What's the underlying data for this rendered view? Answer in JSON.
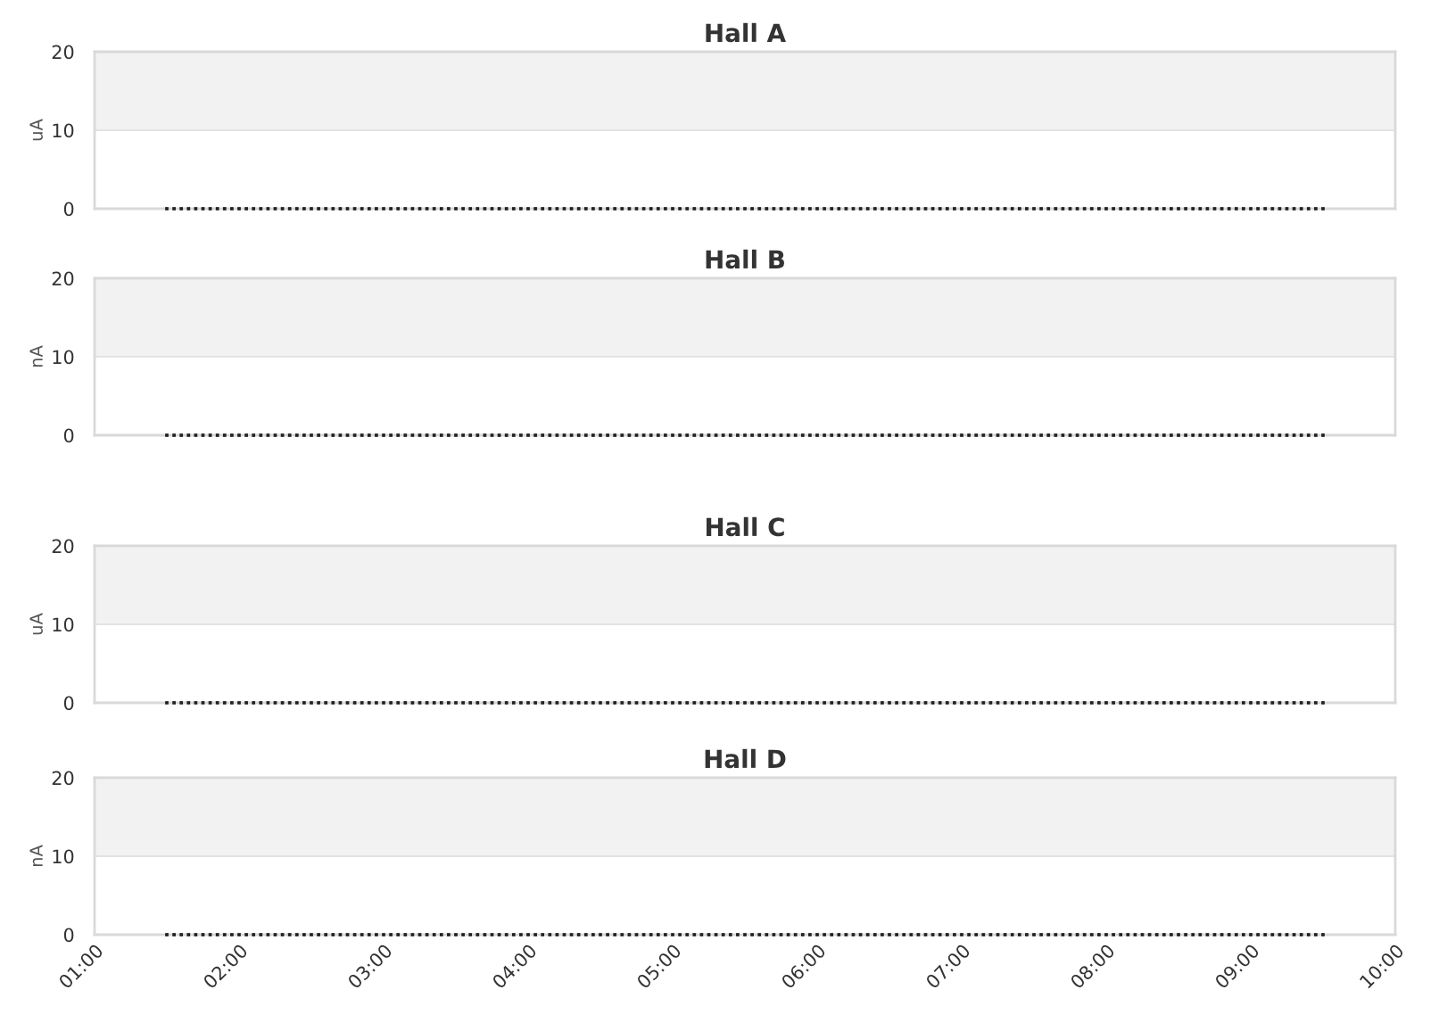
{
  "chart_data": [
    {
      "type": "scatter",
      "title": "Hall A",
      "ylabel": "uA",
      "color": "#222222",
      "marker": "square",
      "x": [
        1.5,
        1.55,
        1.6,
        1.65,
        1.7,
        1.75,
        1.8,
        1.85,
        1.9,
        1.95,
        2,
        2.05,
        2.1,
        2.15,
        2.2,
        2.25,
        2.3,
        2.35,
        2.4,
        2.45,
        2.5,
        2.55,
        2.6,
        2.65,
        2.7,
        2.75,
        2.8,
        2.85,
        2.9,
        2.95,
        3,
        3.05,
        3.1,
        3.15,
        3.2,
        3.25,
        3.3,
        3.35,
        3.4,
        3.45,
        3.5,
        3.55,
        3.6,
        3.65,
        3.7,
        3.75,
        3.8,
        3.85,
        3.9,
        3.95,
        4,
        4.05,
        4.1,
        4.15,
        4.2,
        4.25,
        4.3,
        4.35,
        4.4,
        4.45,
        4.5,
        4.55,
        4.6,
        4.65,
        4.7,
        4.75,
        4.8,
        4.85,
        4.9,
        4.95,
        5,
        5.05,
        5.1,
        5.15,
        5.2,
        5.25,
        5.3,
        5.35,
        5.4,
        5.45,
        5.5,
        5.55,
        5.6,
        5.65,
        5.7,
        5.75,
        5.8,
        5.85,
        5.9,
        5.95,
        6,
        6.05,
        6.1,
        6.15,
        6.2,
        6.25,
        6.3,
        6.35,
        6.4,
        6.45,
        6.5,
        6.55,
        6.6,
        6.65,
        6.7,
        6.75,
        6.8,
        6.85,
        6.9,
        6.95,
        7,
        7.05,
        7.1,
        7.15,
        7.2,
        7.25,
        7.3,
        7.35,
        7.4,
        7.45,
        7.5,
        7.55,
        7.6,
        7.65,
        7.7,
        7.75,
        7.8,
        7.85,
        7.9,
        7.95,
        8,
        8.05,
        8.1,
        8.15,
        8.2,
        8.25,
        8.3,
        8.35,
        8.4,
        8.45,
        8.5,
        8.55,
        8.6,
        8.65,
        8.7,
        8.75,
        8.8,
        8.85,
        8.9,
        8.95,
        9,
        9.05,
        9.1,
        9.15,
        9.2,
        9.25,
        9.3,
        9.35,
        9.4,
        9.45,
        9.5
      ],
      "values": [
        0,
        0,
        0,
        0,
        0,
        0,
        0,
        0,
        0,
        0,
        0,
        0,
        0,
        0,
        0,
        0,
        0,
        0,
        0,
        0,
        0,
        0,
        0,
        0,
        0,
        0,
        0,
        0,
        0,
        0,
        0,
        0,
        0,
        0,
        0,
        0,
        0,
        0,
        0,
        0,
        0,
        0,
        0,
        0,
        0,
        0,
        0,
        0,
        0,
        0,
        0,
        0,
        0,
        0,
        0,
        0,
        0,
        0,
        0,
        0,
        0,
        0,
        0,
        0,
        0,
        0,
        0,
        0,
        0,
        0,
        0,
        0,
        0,
        0,
        0,
        0,
        0,
        0,
        0,
        0,
        0,
        0,
        0,
        0,
        0,
        0,
        0,
        0,
        0,
        0,
        0,
        0,
        0,
        0,
        0,
        0,
        0,
        0,
        0,
        0,
        0,
        0,
        0,
        0,
        0,
        0,
        0,
        0,
        0,
        0,
        0,
        0,
        0,
        0,
        0,
        0,
        0,
        0,
        0,
        0,
        0,
        0,
        0,
        0,
        0,
        0,
        0,
        0,
        0,
        0,
        0,
        0,
        0,
        0,
        0,
        0,
        0,
        0,
        0,
        0,
        0,
        0,
        0,
        0,
        0,
        0,
        0,
        0,
        0,
        0,
        0,
        0,
        0,
        0,
        0,
        0,
        0,
        0,
        0,
        0,
        0
      ],
      "xlim": [
        1,
        10
      ],
      "ylim": [
        0,
        20
      ],
      "yticks": [
        0,
        10,
        20
      ],
      "grid": "y",
      "bands": [
        {
          "axis": "y",
          "from": 10,
          "to": 20,
          "color": "#f2f2f2"
        }
      ],
      "tick_labels": "y"
    },
    {
      "type": "scatter",
      "title": "Hall B",
      "ylabel": "nA",
      "color": "#222222",
      "marker": "square",
      "x": [
        1.5,
        1.55,
        1.6,
        1.65,
        1.7,
        1.75,
        1.8,
        1.85,
        1.9,
        1.95,
        2,
        2.05,
        2.1,
        2.15,
        2.2,
        2.25,
        2.3,
        2.35,
        2.4,
        2.45,
        2.5,
        2.55,
        2.6,
        2.65,
        2.7,
        2.75,
        2.8,
        2.85,
        2.9,
        2.95,
        3,
        3.05,
        3.1,
        3.15,
        3.2,
        3.25,
        3.3,
        3.35,
        3.4,
        3.45,
        3.5,
        3.55,
        3.6,
        3.65,
        3.7,
        3.75,
        3.8,
        3.85,
        3.9,
        3.95,
        4,
        4.05,
        4.1,
        4.15,
        4.2,
        4.25,
        4.3,
        4.35,
        4.4,
        4.45,
        4.5,
        4.55,
        4.6,
        4.65,
        4.7,
        4.75,
        4.8,
        4.85,
        4.9,
        4.95,
        5,
        5.05,
        5.1,
        5.15,
        5.2,
        5.25,
        5.3,
        5.35,
        5.4,
        5.45,
        5.5,
        5.55,
        5.6,
        5.65,
        5.7,
        5.75,
        5.8,
        5.85,
        5.9,
        5.95,
        6,
        6.05,
        6.1,
        6.15,
        6.2,
        6.25,
        6.3,
        6.35,
        6.4,
        6.45,
        6.5,
        6.55,
        6.6,
        6.65,
        6.7,
        6.75,
        6.8,
        6.85,
        6.9,
        6.95,
        7,
        7.05,
        7.1,
        7.15,
        7.2,
        7.25,
        7.3,
        7.35,
        7.4,
        7.45,
        7.5,
        7.55,
        7.6,
        7.65,
        7.7,
        7.75,
        7.8,
        7.85,
        7.9,
        7.95,
        8,
        8.05,
        8.1,
        8.15,
        8.2,
        8.25,
        8.3,
        8.35,
        8.4,
        8.45,
        8.5,
        8.55,
        8.6,
        8.65,
        8.7,
        8.75,
        8.8,
        8.85,
        8.9,
        8.95,
        9,
        9.05,
        9.1,
        9.15,
        9.2,
        9.25,
        9.3,
        9.35,
        9.4,
        9.45,
        9.5
      ],
      "values": [
        0,
        0,
        0,
        0,
        0,
        0,
        0,
        0,
        0,
        0,
        0,
        0,
        0,
        0,
        0,
        0,
        0,
        0,
        0,
        0,
        0,
        0,
        0,
        0,
        0,
        0,
        0,
        0,
        0,
        0,
        0,
        0,
        0,
        0,
        0,
        0,
        0,
        0,
        0,
        0,
        0,
        0,
        0,
        0,
        0,
        0,
        0,
        0,
        0,
        0,
        0,
        0,
        0,
        0,
        0,
        0,
        0,
        0,
        0,
        0,
        0,
        0,
        0,
        0,
        0,
        0,
        0,
        0,
        0,
        0,
        0,
        0,
        0,
        0,
        0,
        0,
        0,
        0,
        0,
        0,
        0,
        0,
        0,
        0,
        0,
        0,
        0,
        0,
        0,
        0,
        0,
        0,
        0,
        0,
        0,
        0,
        0,
        0,
        0,
        0,
        0,
        0,
        0,
        0,
        0,
        0,
        0,
        0,
        0,
        0,
        0,
        0,
        0,
        0,
        0,
        0,
        0,
        0,
        0,
        0,
        0,
        0,
        0,
        0,
        0,
        0,
        0,
        0,
        0,
        0,
        0,
        0,
        0,
        0,
        0,
        0,
        0,
        0,
        0,
        0,
        0,
        0,
        0,
        0,
        0,
        0,
        0,
        0,
        0,
        0,
        0,
        0,
        0,
        0,
        0,
        0,
        0,
        0,
        0,
        0,
        0
      ],
      "xlim": [
        1,
        10
      ],
      "ylim": [
        0,
        20
      ],
      "yticks": [
        0,
        10,
        20
      ],
      "grid": "y",
      "bands": [
        {
          "axis": "y",
          "from": 10,
          "to": 20,
          "color": "#f2f2f2"
        }
      ],
      "tick_labels": "y"
    },
    {
      "type": "scatter",
      "title": "Hall C",
      "ylabel": "uA",
      "color": "#222222",
      "marker": "square",
      "x": [
        1.5,
        1.55,
        1.6,
        1.65,
        1.7,
        1.75,
        1.8,
        1.85,
        1.9,
        1.95,
        2,
        2.05,
        2.1,
        2.15,
        2.2,
        2.25,
        2.3,
        2.35,
        2.4,
        2.45,
        2.5,
        2.55,
        2.6,
        2.65,
        2.7,
        2.75,
        2.8,
        2.85,
        2.9,
        2.95,
        3,
        3.05,
        3.1,
        3.15,
        3.2,
        3.25,
        3.3,
        3.35,
        3.4,
        3.45,
        3.5,
        3.55,
        3.6,
        3.65,
        3.7,
        3.75,
        3.8,
        3.85,
        3.9,
        3.95,
        4,
        4.05,
        4.1,
        4.15,
        4.2,
        4.25,
        4.3,
        4.35,
        4.4,
        4.45,
        4.5,
        4.55,
        4.6,
        4.65,
        4.7,
        4.75,
        4.8,
        4.85,
        4.9,
        4.95,
        5,
        5.05,
        5.1,
        5.15,
        5.2,
        5.25,
        5.3,
        5.35,
        5.4,
        5.45,
        5.5,
        5.55,
        5.6,
        5.65,
        5.7,
        5.75,
        5.8,
        5.85,
        5.9,
        5.95,
        6,
        6.05,
        6.1,
        6.15,
        6.2,
        6.25,
        6.3,
        6.35,
        6.4,
        6.45,
        6.5,
        6.55,
        6.6,
        6.65,
        6.7,
        6.75,
        6.8,
        6.85,
        6.9,
        6.95,
        7,
        7.05,
        7.1,
        7.15,
        7.2,
        7.25,
        7.3,
        7.35,
        7.4,
        7.45,
        7.5,
        7.55,
        7.6,
        7.65,
        7.7,
        7.75,
        7.8,
        7.85,
        7.9,
        7.95,
        8,
        8.05,
        8.1,
        8.15,
        8.2,
        8.25,
        8.3,
        8.35,
        8.4,
        8.45,
        8.5,
        8.55,
        8.6,
        8.65,
        8.7,
        8.75,
        8.8,
        8.85,
        8.9,
        8.95,
        9,
        9.05,
        9.1,
        9.15,
        9.2,
        9.25,
        9.3,
        9.35,
        9.4,
        9.45,
        9.5
      ],
      "values": [
        0,
        0,
        0,
        0,
        0,
        0,
        0,
        0,
        0,
        0,
        0,
        0,
        0,
        0,
        0,
        0,
        0,
        0,
        0,
        0,
        0,
        0,
        0,
        0,
        0,
        0,
        0,
        0,
        0,
        0,
        0,
        0,
        0,
        0,
        0,
        0,
        0,
        0,
        0,
        0,
        0,
        0,
        0,
        0,
        0,
        0,
        0,
        0,
        0,
        0,
        0,
        0,
        0,
        0,
        0,
        0,
        0,
        0,
        0,
        0,
        0,
        0,
        0,
        0,
        0,
        0,
        0,
        0,
        0,
        0,
        0,
        0,
        0,
        0,
        0,
        0,
        0,
        0,
        0,
        0,
        0,
        0,
        0,
        0,
        0,
        0,
        0,
        0,
        0,
        0,
        0,
        0,
        0,
        0,
        0,
        0,
        0,
        0,
        0,
        0,
        0,
        0,
        0,
        0,
        0,
        0,
        0,
        0,
        0,
        0,
        0,
        0,
        0,
        0,
        0,
        0,
        0,
        0,
        0,
        0,
        0,
        0,
        0,
        0,
        0,
        0,
        0,
        0,
        0,
        0,
        0,
        0,
        0,
        0,
        0,
        0,
        0,
        0,
        0,
        0,
        0,
        0,
        0,
        0,
        0,
        0,
        0,
        0,
        0,
        0,
        0,
        0,
        0,
        0,
        0,
        0,
        0,
        0,
        0,
        0,
        0
      ],
      "xlim": [
        1,
        10
      ],
      "ylim": [
        0,
        20
      ],
      "yticks": [
        0,
        10,
        20
      ],
      "grid": "y",
      "bands": [
        {
          "axis": "y",
          "from": 10,
          "to": 20,
          "color": "#f2f2f2"
        }
      ],
      "tick_labels": "y"
    },
    {
      "type": "scatter",
      "title": "Hall D",
      "ylabel": "nA",
      "color": "#222222",
      "marker": "square",
      "x": [
        1.5,
        1.55,
        1.6,
        1.65,
        1.7,
        1.75,
        1.8,
        1.85,
        1.9,
        1.95,
        2,
        2.05,
        2.1,
        2.15,
        2.2,
        2.25,
        2.3,
        2.35,
        2.4,
        2.45,
        2.5,
        2.55,
        2.6,
        2.65,
        2.7,
        2.75,
        2.8,
        2.85,
        2.9,
        2.95,
        3,
        3.05,
        3.1,
        3.15,
        3.2,
        3.25,
        3.3,
        3.35,
        3.4,
        3.45,
        3.5,
        3.55,
        3.6,
        3.65,
        3.7,
        3.75,
        3.8,
        3.85,
        3.9,
        3.95,
        4,
        4.05,
        4.1,
        4.15,
        4.2,
        4.25,
        4.3,
        4.35,
        4.4,
        4.45,
        4.5,
        4.55,
        4.6,
        4.65,
        4.7,
        4.75,
        4.8,
        4.85,
        4.9,
        4.95,
        5,
        5.05,
        5.1,
        5.15,
        5.2,
        5.25,
        5.3,
        5.35,
        5.4,
        5.45,
        5.5,
        5.55,
        5.6,
        5.65,
        5.7,
        5.75,
        5.8,
        5.85,
        5.9,
        5.95,
        6,
        6.05,
        6.1,
        6.15,
        6.2,
        6.25,
        6.3,
        6.35,
        6.4,
        6.45,
        6.5,
        6.55,
        6.6,
        6.65,
        6.7,
        6.75,
        6.8,
        6.85,
        6.9,
        6.95,
        7,
        7.05,
        7.1,
        7.15,
        7.2,
        7.25,
        7.3,
        7.35,
        7.4,
        7.45,
        7.5,
        7.55,
        7.6,
        7.65,
        7.7,
        7.75,
        7.8,
        7.85,
        7.9,
        7.95,
        8,
        8.05,
        8.1,
        8.15,
        8.2,
        8.25,
        8.3,
        8.35,
        8.4,
        8.45,
        8.5,
        8.55,
        8.6,
        8.65,
        8.7,
        8.75,
        8.8,
        8.85,
        8.9,
        8.95,
        9,
        9.05,
        9.1,
        9.15,
        9.2,
        9.25,
        9.3,
        9.35,
        9.4,
        9.45,
        9.5
      ],
      "values": [
        0,
        0,
        0,
        0,
        0,
        0,
        0,
        0,
        0,
        0,
        0,
        0,
        0,
        0,
        0,
        0,
        0,
        0,
        0,
        0,
        0,
        0,
        0,
        0,
        0,
        0,
        0,
        0,
        0,
        0,
        0,
        0,
        0,
        0,
        0,
        0,
        0,
        0,
        0,
        0,
        0,
        0,
        0,
        0,
        0,
        0,
        0,
        0,
        0,
        0,
        0,
        0,
        0,
        0,
        0,
        0,
        0,
        0,
        0,
        0,
        0,
        0,
        0,
        0,
        0,
        0,
        0,
        0,
        0,
        0,
        0,
        0,
        0,
        0,
        0,
        0,
        0,
        0,
        0,
        0,
        0,
        0,
        0,
        0,
        0,
        0,
        0,
        0,
        0,
        0,
        0,
        0,
        0,
        0,
        0,
        0,
        0,
        0,
        0,
        0,
        0,
        0,
        0,
        0,
        0,
        0,
        0,
        0,
        0,
        0,
        0,
        0,
        0,
        0,
        0,
        0,
        0,
        0,
        0,
        0,
        0,
        0,
        0,
        0,
        0,
        0,
        0,
        0,
        0,
        0,
        0,
        0,
        0,
        0,
        0,
        0,
        0,
        0,
        0,
        0,
        0,
        0,
        0,
        0,
        0,
        0,
        0,
        0,
        0,
        0,
        0,
        0,
        0,
        0,
        0,
        0,
        0,
        0,
        0,
        0,
        0
      ],
      "xlim": [
        1,
        10
      ],
      "xticks": [
        {
          "value": 1,
          "label": "01:00"
        },
        {
          "value": 2,
          "label": "02:00"
        },
        {
          "value": 3,
          "label": "03:00"
        },
        {
          "value": 4,
          "label": "04:00"
        },
        {
          "value": 5,
          "label": "05:00"
        },
        {
          "value": 6,
          "label": "06:00"
        },
        {
          "value": 7,
          "label": "07:00"
        },
        {
          "value": 8,
          "label": "08:00"
        },
        {
          "value": 9,
          "label": "09:00"
        },
        {
          "value": 10,
          "label": "10:00"
        }
      ],
      "ylim": [
        0,
        20
      ],
      "yticks": [
        0,
        10,
        20
      ],
      "grid": "y",
      "bands": [
        {
          "axis": "y",
          "from": 10,
          "to": 20,
          "color": "#f2f2f2"
        }
      ]
    }
  ]
}
